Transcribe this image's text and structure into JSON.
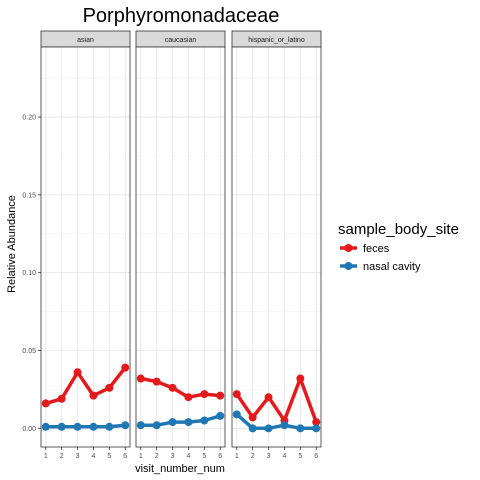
{
  "chart_data": {
    "type": "line",
    "title": "Porphyromonadaceae",
    "xlabel": "visit_number_num",
    "ylabel": "Relative Abundance",
    "x_ticks": [
      1,
      2,
      3,
      4,
      5,
      6
    ],
    "xlim": [
      0.7,
      6.3
    ],
    "ylim": [
      -0.012,
      0.245
    ],
    "y_ticks": [
      0.0,
      0.05,
      0.1,
      0.15,
      0.2
    ],
    "y_tick_labels": [
      "0.00",
      "0.05",
      "0.10",
      "0.15",
      "0.20"
    ],
    "grid": true,
    "legend": {
      "title": "sample_body_site",
      "placement": "right",
      "entries": [
        {
          "name": "feces",
          "color": "#e31a1c"
        },
        {
          "name": "nasal cavity",
          "color": "#1f78b4"
        }
      ]
    },
    "panels": [
      {
        "name": "asian",
        "series": [
          {
            "name": "feces",
            "color": "#e31a1c",
            "x": [
              1,
              2,
              3,
              4,
              5,
              6
            ],
            "values": [
              0.016,
              0.019,
              0.036,
              0.021,
              0.026,
              0.039
            ]
          },
          {
            "name": "nasal cavity",
            "color": "#1f78b4",
            "x": [
              1,
              2,
              3,
              4,
              5,
              6
            ],
            "values": [
              0.001,
              0.001,
              0.001,
              0.001,
              0.001,
              0.002
            ]
          }
        ]
      },
      {
        "name": "caucasian",
        "series": [
          {
            "name": "feces",
            "color": "#e31a1c",
            "x": [
              1,
              2,
              3,
              4,
              5,
              6
            ],
            "values": [
              0.032,
              0.03,
              0.026,
              0.02,
              0.022,
              0.021
            ]
          },
          {
            "name": "nasal cavity",
            "color": "#1f78b4",
            "x": [
              1,
              2,
              3,
              4,
              5,
              6
            ],
            "values": [
              0.002,
              0.002,
              0.004,
              0.004,
              0.005,
              0.008
            ]
          }
        ]
      },
      {
        "name": "hispanic_or_latino",
        "series": [
          {
            "name": "feces",
            "color": "#e31a1c",
            "x": [
              1,
              2,
              3,
              4,
              5,
              6
            ],
            "values": [
              0.022,
              0.007,
              0.02,
              0.005,
              0.032,
              0.004
            ]
          },
          {
            "name": "nasal cavity",
            "color": "#1f78b4",
            "x": [
              1,
              2,
              3,
              4,
              5,
              6
            ],
            "values": [
              0.009,
              0.0,
              0.0,
              0.002,
              0.0,
              0.0
            ]
          }
        ]
      }
    ]
  }
}
